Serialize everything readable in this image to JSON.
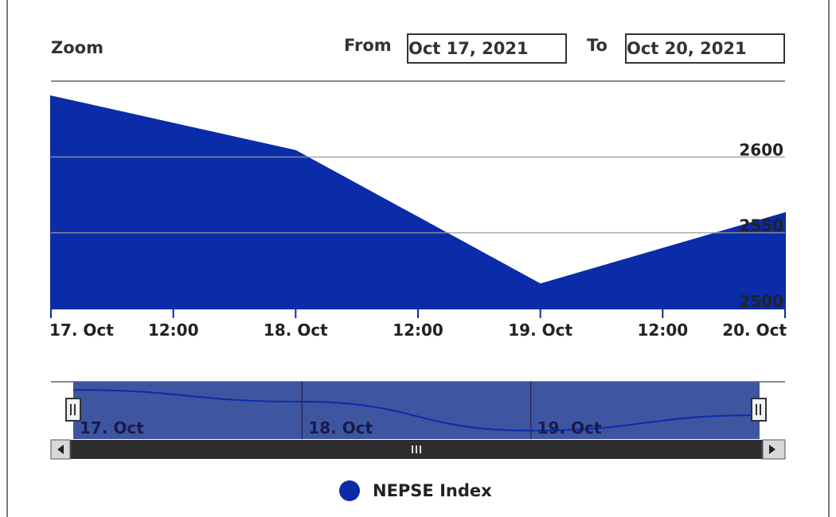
{
  "zoom": {
    "label": "Zoom"
  },
  "range": {
    "from_label": "From",
    "from_value": "Oct 17, 2021",
    "to_label": "To",
    "to_value": "Oct 20, 2021"
  },
  "colors": {
    "series": "#0a2ca8",
    "navigator_fill": "#3e56a0",
    "grid": "#9a9a9a",
    "scrollbar": "#3a3a3a"
  },
  "chart_data": {
    "type": "area",
    "title": "",
    "xlabel": "",
    "ylabel": "",
    "y_axis_position": "right",
    "ylim": [
      2500,
      2650
    ],
    "yticks": [
      2500,
      2550,
      2600
    ],
    "xlim": [
      "2021-10-17 00:00",
      "2021-10-20 00:00"
    ],
    "xtick_labels": [
      "17. Oct",
      "12:00",
      "18. Oct",
      "12:00",
      "19. Oct",
      "12:00",
      "20. Oct"
    ],
    "series": [
      {
        "name": "NEPSE Index",
        "x": [
          "2021-10-17",
          "2021-10-18",
          "2021-10-19",
          "2021-10-20"
        ],
        "values": [
          2640,
          2604,
          2516,
          2563
        ]
      }
    ],
    "navigator": {
      "tick_labels": [
        "17. Oct",
        "18. Oct",
        "19. Oct"
      ]
    },
    "legend": {
      "position": "bottom"
    }
  }
}
